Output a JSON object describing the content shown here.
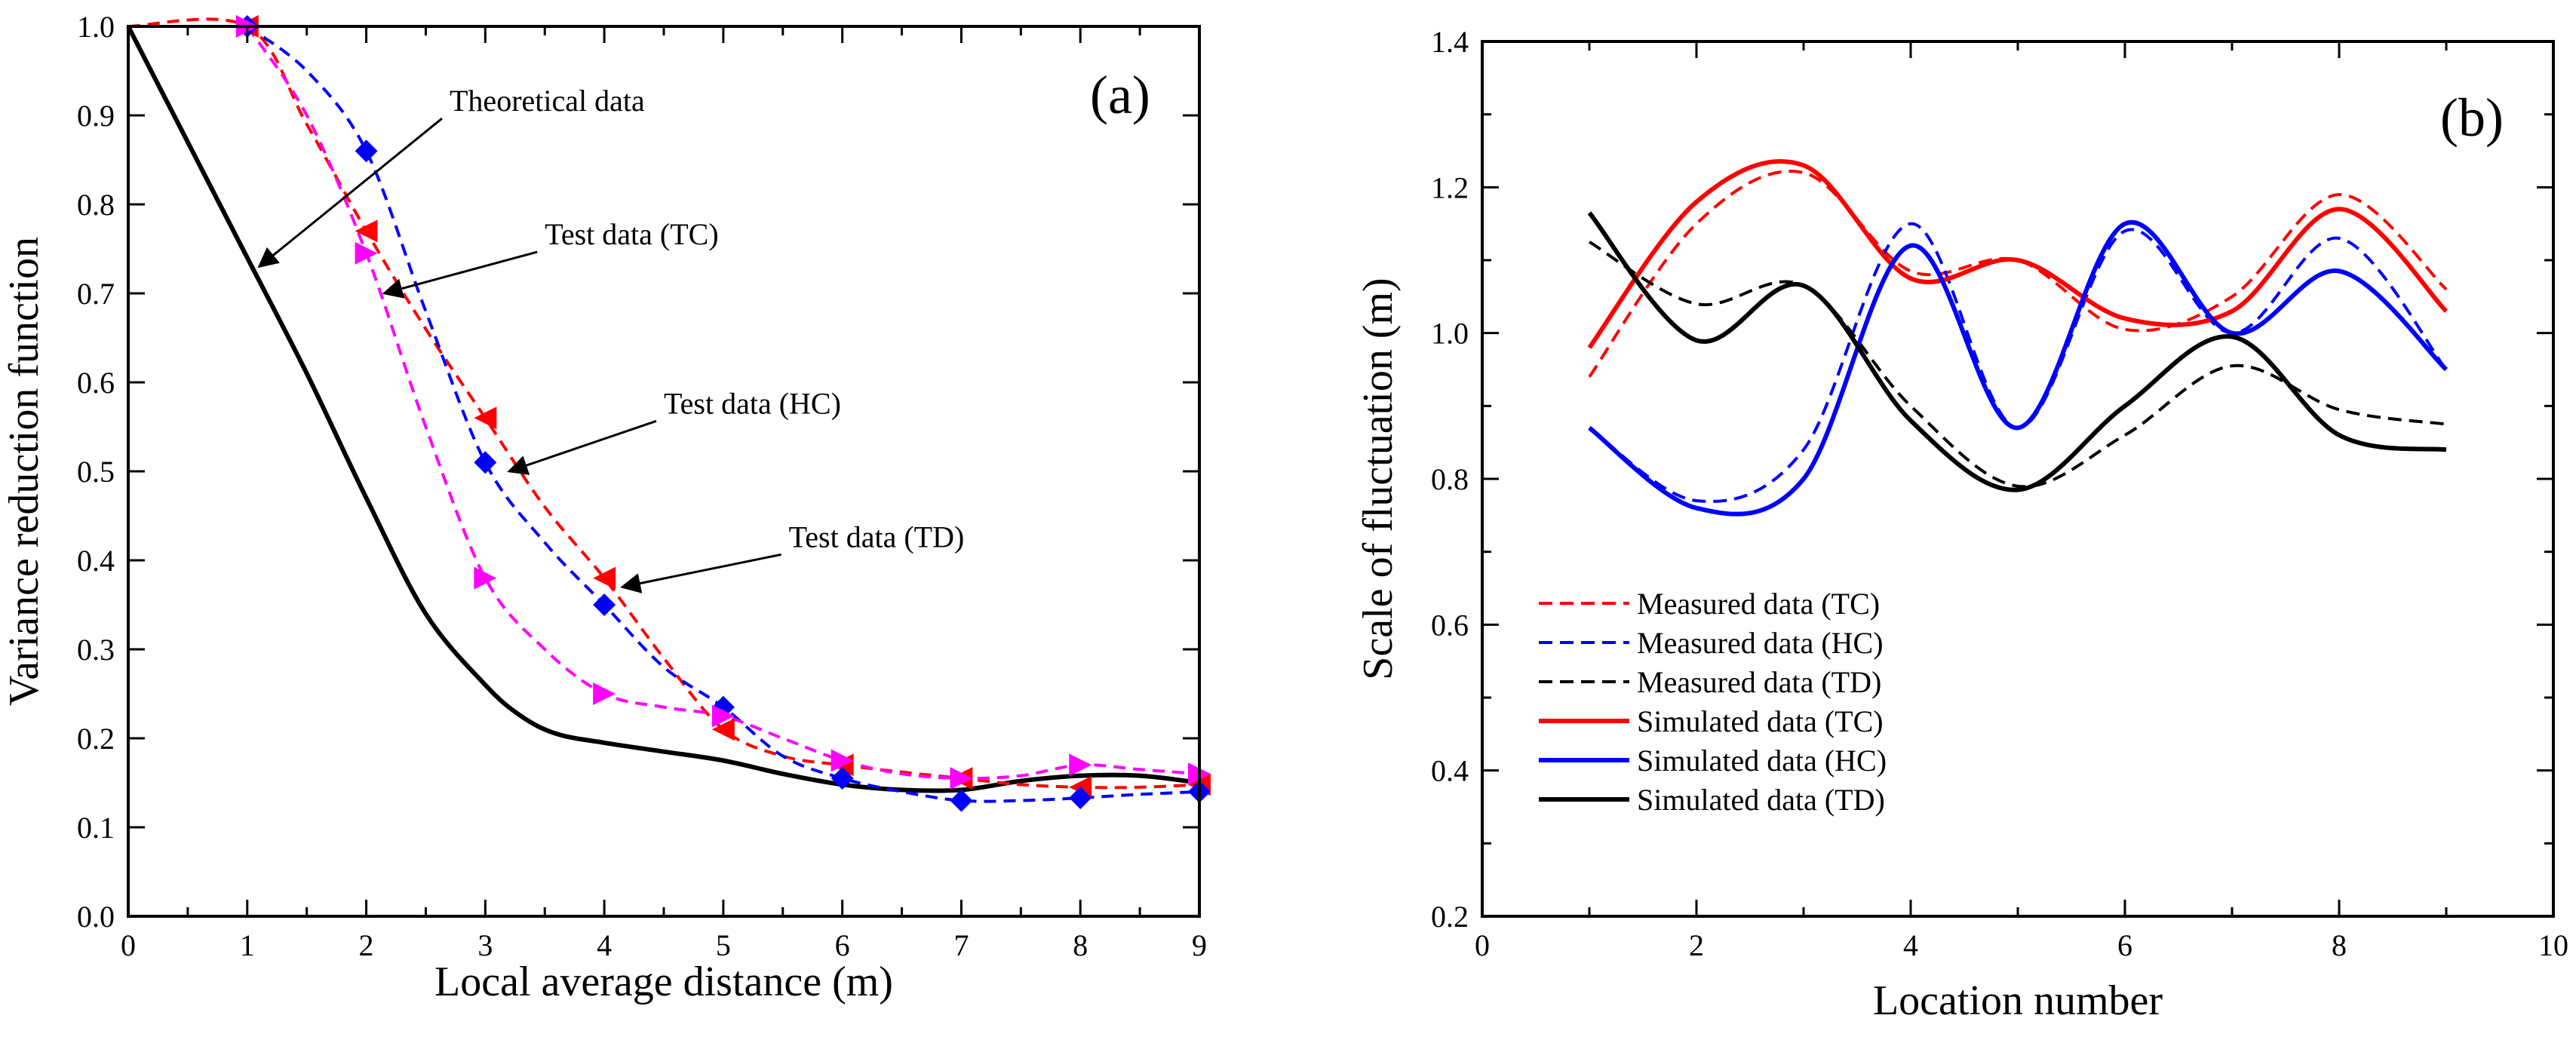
{
  "chart_data": [
    {
      "type": "line",
      "panel_label": "(a)",
      "xlabel": "Local average distance (m)",
      "ylabel": "Variance reduction function",
      "xlim": [
        0,
        9
      ],
      "ylim": [
        0.0,
        1.0
      ],
      "xticks": [
        "0",
        "1",
        "2",
        "3",
        "4",
        "5",
        "6",
        "7",
        "8",
        "9"
      ],
      "yticks": [
        "0.0",
        "0.1",
        "0.2",
        "0.3",
        "0.4",
        "0.5",
        "0.6",
        "0.7",
        "0.8",
        "0.9",
        "1.0"
      ],
      "colors": {
        "theoretical": "#000000",
        "tc": "#ff0000",
        "hc": "#0000ff",
        "td": "#ff00ff"
      },
      "series": [
        {
          "name": "Theoretical data",
          "style": "solid",
          "x": [
            0,
            0.5,
            1.0,
            1.5,
            2.0,
            2.5,
            3.0,
            3.3,
            3.6,
            4.0,
            4.5,
            5.0,
            5.5,
            6.0,
            6.5,
            7.0,
            7.5,
            8.0,
            8.5,
            9.0
          ],
          "y": [
            1.0,
            0.87,
            0.74,
            0.61,
            0.47,
            0.34,
            0.26,
            0.225,
            0.205,
            0.195,
            0.185,
            0.175,
            0.16,
            0.148,
            0.142,
            0.142,
            0.152,
            0.158,
            0.158,
            0.15
          ]
        },
        {
          "name": "Test data (TC)",
          "style": "dashed",
          "marker": "triangle-left",
          "curve_x": [
            0,
            1,
            1.5,
            2,
            2.5,
            3,
            3.5,
            4,
            4.5,
            5,
            5.5,
            6,
            6.5,
            7,
            7.5,
            8,
            8.5,
            9
          ],
          "curve_y": [
            1.0,
            1.0,
            0.89,
            0.77,
            0.66,
            0.56,
            0.46,
            0.38,
            0.29,
            0.21,
            0.18,
            0.17,
            0.162,
            0.155,
            0.148,
            0.145,
            0.145,
            0.148
          ],
          "marker_x": [
            1,
            2,
            3,
            4,
            5,
            6,
            7,
            8,
            9
          ],
          "marker_y": [
            1.0,
            0.77,
            0.56,
            0.38,
            0.21,
            0.17,
            0.155,
            0.145,
            0.148
          ]
        },
        {
          "name": "Test data (HC)",
          "style": "dashed",
          "marker": "diamond",
          "curve_x": [
            1,
            1.5,
            2,
            2.5,
            3,
            3.5,
            4,
            4.5,
            5,
            5.5,
            6,
            6.5,
            7,
            7.5,
            8,
            8.5,
            9
          ],
          "curve_y": [
            1.0,
            0.95,
            0.86,
            0.68,
            0.51,
            0.42,
            0.35,
            0.28,
            0.235,
            0.18,
            0.155,
            0.14,
            0.13,
            0.13,
            0.133,
            0.137,
            0.14
          ],
          "marker_x": [
            1,
            2,
            3,
            4,
            5,
            6,
            7,
            8,
            9
          ],
          "marker_y": [
            1.0,
            0.86,
            0.51,
            0.35,
            0.235,
            0.155,
            0.13,
            0.133,
            0.14
          ]
        },
        {
          "name": "Test data (TD)",
          "style": "dashed",
          "marker": "triangle-right",
          "curve_x": [
            1,
            1.5,
            2,
            2.5,
            3,
            3.5,
            4,
            4.5,
            5,
            5.5,
            6,
            6.5,
            7,
            7.5,
            8,
            8.5,
            9
          ],
          "curve_y": [
            1.0,
            0.9,
            0.745,
            0.55,
            0.38,
            0.3,
            0.25,
            0.235,
            0.225,
            0.2,
            0.175,
            0.16,
            0.155,
            0.158,
            0.17,
            0.165,
            0.16
          ],
          "marker_x": [
            1,
            2,
            3,
            4,
            5,
            6,
            7,
            8,
            9
          ],
          "marker_y": [
            1.0,
            0.745,
            0.38,
            0.25,
            0.225,
            0.175,
            0.155,
            0.17,
            0.16
          ]
        }
      ],
      "annotations": [
        {
          "text": "Theoretical data",
          "target_x": 1.1,
          "target_y": 0.73,
          "label_x": 2.7,
          "label_y": 0.905
        },
        {
          "text": "Test data (TC)",
          "target_x": 2.15,
          "target_y": 0.7,
          "label_x": 3.5,
          "label_y": 0.755
        },
        {
          "text": "Test data (HC)",
          "target_x": 3.2,
          "target_y": 0.5,
          "label_x": 4.5,
          "label_y": 0.565
        },
        {
          "text": "Test data (TD)",
          "target_x": 4.15,
          "target_y": 0.37,
          "label_x": 5.55,
          "label_y": 0.415
        }
      ]
    },
    {
      "type": "line",
      "panel_label": "(b)",
      "xlabel": "Location number",
      "ylabel": "Scale of fluctuation (m)",
      "xlim": [
        0,
        10
      ],
      "ylim": [
        0.2,
        1.4
      ],
      "xticks": [
        "0",
        "2",
        "4",
        "6",
        "8",
        "10"
      ],
      "yticks": [
        "0.2",
        "0.4",
        "0.6",
        "0.8",
        "1.0",
        "1.2",
        "1.4"
      ],
      "legend_position": "lower-left",
      "series": [
        {
          "name": "Measured data (TC)",
          "color": "#ff0000",
          "style": "dashed",
          "x": [
            1,
            2,
            3,
            4,
            5,
            6,
            7,
            8,
            9
          ],
          "y": [
            0.94,
            1.15,
            1.22,
            1.085,
            1.1,
            1.005,
            1.05,
            1.19,
            1.06
          ]
        },
        {
          "name": "Measured data (HC)",
          "color": "#0000ff",
          "style": "dashed",
          "x": [
            1,
            2,
            3,
            4,
            5,
            6,
            7,
            8,
            9
          ],
          "y": [
            0.87,
            0.77,
            0.84,
            1.15,
            0.87,
            1.14,
            1.0,
            1.13,
            0.95
          ]
        },
        {
          "name": "Measured data (TD)",
          "color": "#000000",
          "style": "dashed",
          "x": [
            1,
            2,
            3,
            4,
            5,
            6,
            7,
            8,
            9
          ],
          "y": [
            1.125,
            1.04,
            1.065,
            0.9,
            0.79,
            0.86,
            0.955,
            0.895,
            0.875
          ]
        },
        {
          "name": "Simulated data (TC)",
          "color": "#ff0000",
          "style": "solid",
          "x": [
            1,
            2,
            3,
            4,
            5,
            6,
            7,
            8,
            9
          ],
          "y": [
            0.98,
            1.18,
            1.23,
            1.075,
            1.1,
            1.02,
            1.03,
            1.17,
            1.03
          ]
        },
        {
          "name": "Simulated data (HC)",
          "color": "#0000ff",
          "style": "solid",
          "x": [
            1,
            2,
            3,
            4,
            5,
            6,
            7,
            8,
            9
          ],
          "y": [
            0.87,
            0.76,
            0.8,
            1.12,
            0.87,
            1.15,
            1.0,
            1.085,
            0.95
          ]
        },
        {
          "name": "Simulated data (TD)",
          "color": "#000000",
          "style": "solid",
          "x": [
            1,
            2,
            3,
            4,
            5,
            6,
            7,
            8,
            9
          ],
          "y": [
            1.165,
            0.99,
            1.065,
            0.88,
            0.785,
            0.9,
            0.995,
            0.86,
            0.84
          ]
        }
      ]
    }
  ]
}
